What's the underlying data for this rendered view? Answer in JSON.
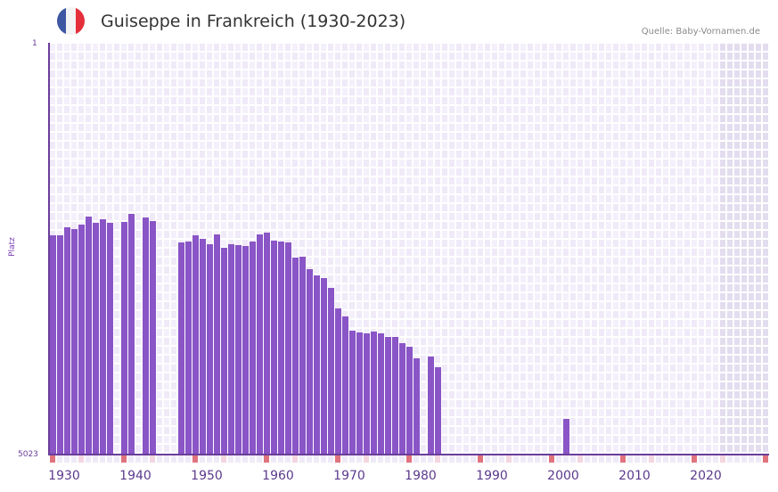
{
  "header": {
    "title": "Guiseppe in Frankreich (1930-2023)",
    "source": "Quelle: Baby-Vornamen.de",
    "flag": {
      "name": "france-flag",
      "colors": [
        "#3d57a3",
        "#f4f4f4",
        "#e5303b"
      ]
    }
  },
  "axis": {
    "y_top_label": "1",
    "y_bottom_label": "5023",
    "y_title": "Platz",
    "x_tick_labels": [
      "1930",
      "1940",
      "1950",
      "1960",
      "1970",
      "1980",
      "1990",
      "2000",
      "2010",
      "2020"
    ]
  },
  "colors": {
    "bar": "#8a55c6",
    "axis": "#6a3d9a",
    "grid_a": "#efe9f8",
    "grid_b": "#f4f0fb",
    "future_shade": "#e3ddef",
    "marker_decade": "#e0737e",
    "marker_mid": "#f3d6e0",
    "marker_other": "#efeaf7"
  },
  "chart_data": {
    "type": "bar",
    "title": "Guiseppe in Frankreich (1930-2023)",
    "xlabel": "",
    "ylabel": "Platz",
    "ylim": [
      5023,
      1
    ],
    "y_inverted": true,
    "grid": true,
    "x_range": [
      1930,
      2030
    ],
    "shaded_from_year": 2024,
    "note": "Rank (lower = more popular); missing years not ranked",
    "x": [
      1930,
      1931,
      1932,
      1933,
      1934,
      1935,
      1936,
      1937,
      1938,
      1940,
      1941,
      1943,
      1944,
      1948,
      1949,
      1950,
      1951,
      1952,
      1953,
      1954,
      1955,
      1956,
      1957,
      1958,
      1959,
      1960,
      1961,
      1962,
      1963,
      1964,
      1965,
      1966,
      1967,
      1968,
      1969,
      1970,
      1971,
      1972,
      1973,
      1974,
      1975,
      1976,
      1977,
      1978,
      1979,
      1980,
      1981,
      1983,
      1984,
      2002
    ],
    "values": [
      2344,
      2344,
      2246,
      2268,
      2214,
      2116,
      2192,
      2148,
      2192,
      2181,
      2083,
      2127,
      2170,
      2431,
      2420,
      2344,
      2387,
      2453,
      2333,
      2496,
      2453,
      2464,
      2475,
      2420,
      2333,
      2311,
      2409,
      2420,
      2431,
      2616,
      2605,
      2757,
      2833,
      2866,
      2985,
      3235,
      3333,
      3507,
      3539,
      3550,
      3518,
      3550,
      3583,
      3583,
      3659,
      3713,
      3844,
      3822,
      3963,
      4583
    ]
  }
}
